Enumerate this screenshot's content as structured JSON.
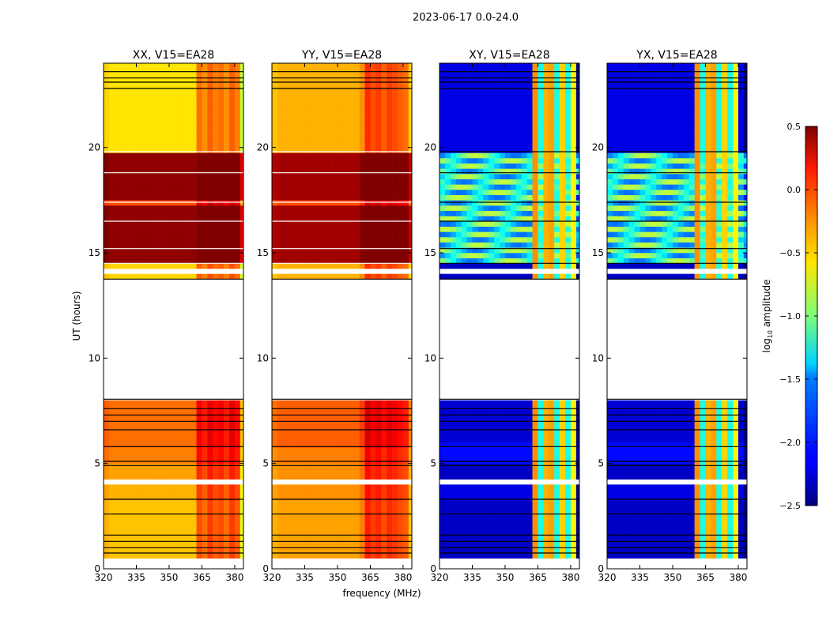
{
  "chart_data": {
    "type": "heatmap",
    "title": "2023-06-17 0.0-24.0",
    "xlabel": "frequency (MHz)",
    "ylabel": "UT (hours)",
    "xlim": [
      320,
      384
    ],
    "ylim": [
      0,
      24
    ],
    "xticks": [
      320,
      335,
      350,
      365,
      380
    ],
    "yticks": [
      0,
      5,
      10,
      15,
      20
    ],
    "freq_bin_MHz": 2.5,
    "time_bin_hours": 0.25,
    "colormap": "jet",
    "colorbar": {
      "label_main": "log",
      "label_sub": "10",
      "label_rest": " amplitude",
      "vmin": -2.5,
      "vmax": 0.5,
      "ticks": [
        "0.5",
        "0.0",
        "−0.5",
        "−1.0",
        "−1.5",
        "−2.0",
        "−2.5"
      ],
      "tick_values": [
        0.5,
        0.0,
        -0.5,
        -1.0,
        -1.5,
        -2.0,
        -2.5
      ]
    },
    "flag_lines_hours": [
      0.75,
      1.0,
      1.3,
      1.6,
      2.6,
      3.3,
      4.1,
      4.9,
      5.1,
      5.8,
      6.6,
      7.0,
      7.3,
      7.6,
      8.05,
      13.75,
      14.5,
      15.2,
      16.5,
      17.4,
      18.8,
      19.8,
      22.8,
      23.1,
      23.3,
      23.6
    ],
    "blank_rows_hours": [
      [
        0,
        0.5
      ],
      [
        4.1,
        4.25
      ],
      [
        8.1,
        13.7
      ],
      [
        14.0,
        14.15
      ]
    ],
    "panels": [
      {
        "title": "XX, V15=EA28",
        "segments": [
          [
            0.5,
            3.3,
            -0.45
          ],
          [
            3.3,
            4.1,
            -0.4
          ],
          [
            4.25,
            5.0,
            -0.35
          ],
          [
            5.0,
            5.8,
            -0.25
          ],
          [
            5.8,
            8.1,
            -0.2
          ],
          [
            13.7,
            14.5,
            -0.5
          ],
          [
            14.5,
            17.2,
            0.45
          ],
          [
            17.2,
            17.6,
            -0.1
          ],
          [
            17.6,
            19.8,
            0.45
          ],
          [
            19.8,
            24,
            -0.55
          ]
        ],
        "offsets": [
          0.05,
          0,
          0,
          0,
          0,
          0,
          0,
          0,
          0,
          0,
          0,
          0,
          0,
          0,
          0,
          0,
          0,
          0.35,
          0.25,
          0.4,
          0.3,
          0.35,
          0.25,
          0.4,
          0.3,
          -0.25
        ],
        "floors": []
      },
      {
        "title": "YY, V15=EA28",
        "segments": [
          [
            0.5,
            3.3,
            -0.35
          ],
          [
            3.3,
            4.1,
            -0.3
          ],
          [
            4.25,
            5.0,
            -0.3
          ],
          [
            5.0,
            5.8,
            -0.25
          ],
          [
            5.8,
            8.1,
            -0.15
          ],
          [
            13.7,
            14.5,
            -0.4
          ],
          [
            14.5,
            17.2,
            0.4
          ],
          [
            17.2,
            17.6,
            -0.1
          ],
          [
            17.6,
            19.8,
            0.4
          ],
          [
            19.8,
            24,
            -0.4
          ]
        ],
        "offsets": [
          -0.05,
          0,
          0,
          0,
          0,
          0,
          0,
          0,
          0,
          0,
          0,
          0,
          0,
          0,
          0,
          0,
          0.1,
          0.4,
          0.3,
          0.35,
          0.25,
          0.35,
          0.3,
          0.25,
          0.2,
          -0.1
        ],
        "floors": []
      },
      {
        "title": "XY, V15=EA28",
        "segments": [
          [
            0.5,
            3.2,
            -2.3
          ],
          [
            3.2,
            4.1,
            -2.2
          ],
          [
            4.25,
            5.0,
            -2.3
          ],
          [
            5.0,
            6.0,
            -2.1
          ],
          [
            6.0,
            8.1,
            -2.25
          ],
          [
            13.7,
            14.5,
            -2.3
          ],
          [
            14.5,
            19.8,
            -1.3
          ],
          [
            19.8,
            24,
            -2.2
          ]
        ],
        "offsets": [
          0,
          0,
          0,
          0,
          0,
          0,
          0,
          0,
          0,
          0,
          0,
          0,
          0,
          0,
          0,
          0,
          0,
          0,
          0,
          0,
          0,
          0,
          0,
          0,
          0,
          -0.3
        ],
        "floors": [
          -9,
          -9,
          -9,
          -9,
          -9,
          -9,
          -9,
          -9,
          -9,
          -9,
          -9,
          -9,
          -9,
          -9,
          -9,
          -9,
          -9,
          -0.3,
          -1.3,
          -0.4,
          -0.35,
          -1.3,
          -0.5,
          -1.3,
          -0.6,
          -9
        ]
      },
      {
        "title": "YX, V15=EA28",
        "segments": [
          [
            0.5,
            3.2,
            -2.3
          ],
          [
            3.2,
            4.1,
            -2.2
          ],
          [
            4.25,
            5.0,
            -2.3
          ],
          [
            5.0,
            6.0,
            -2.1
          ],
          [
            6.0,
            8.1,
            -2.25
          ],
          [
            13.7,
            14.5,
            -2.3
          ],
          [
            14.5,
            19.8,
            -1.3
          ],
          [
            19.8,
            24,
            -2.2
          ]
        ],
        "offsets": [
          0,
          0,
          0,
          0,
          0,
          0,
          0,
          0,
          0,
          0,
          0,
          0,
          0,
          0,
          0,
          0,
          0,
          0,
          0,
          0,
          0,
          0,
          0,
          0,
          0,
          -0.3
        ],
        "floors": [
          -9,
          -9,
          -9,
          -9,
          -9,
          -9,
          -9,
          -9,
          -9,
          -9,
          -9,
          -9,
          -9,
          -9,
          -9,
          -9,
          -0.3,
          -1.3,
          -0.4,
          -0.35,
          -1.3,
          -0.5,
          -1.3,
          -0.6,
          -9,
          -9
        ]
      }
    ]
  }
}
